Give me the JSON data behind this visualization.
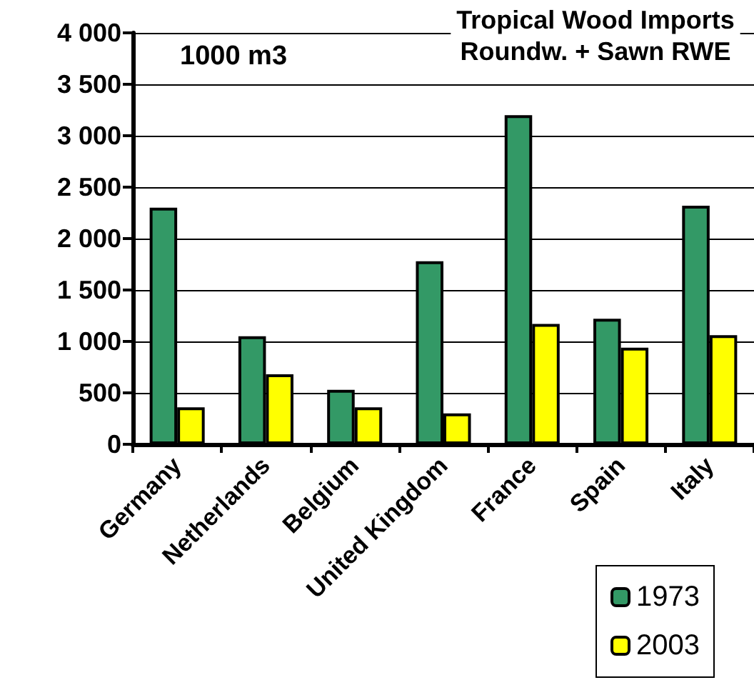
{
  "chart_data": {
    "type": "bar",
    "title": "Tropical Wood Imports",
    "subtitle": "Roundw. + Sawn RWE",
    "annotations": [
      "1000 m3"
    ],
    "categories": [
      "Germany",
      "Netherlands",
      "Belgium",
      "United Kingdom",
      "France",
      "Spain",
      "Italy"
    ],
    "series": [
      {
        "name": "1973",
        "color": "#339966",
        "values": [
          2300,
          1050,
          530,
          1780,
          3200,
          1220,
          2320
        ]
      },
      {
        "name": "2003",
        "color": "#ffff00",
        "values": [
          360,
          680,
          360,
          300,
          1170,
          940,
          1060
        ]
      }
    ],
    "ylim": [
      0,
      4000
    ],
    "yticks": [
      {
        "value": 0,
        "label": "0"
      },
      {
        "value": 500,
        "label": "500"
      },
      {
        "value": 1000,
        "label": "1 000"
      },
      {
        "value": 1500,
        "label": "1 500"
      },
      {
        "value": 2000,
        "label": "2 000"
      },
      {
        "value": 2500,
        "label": "2 500"
      },
      {
        "value": 3000,
        "label": "3 000"
      },
      {
        "value": 3500,
        "label": "3 500"
      },
      {
        "value": 4000,
        "label": "4 000"
      }
    ],
    "grid": "y",
    "legend": "bottom right"
  }
}
